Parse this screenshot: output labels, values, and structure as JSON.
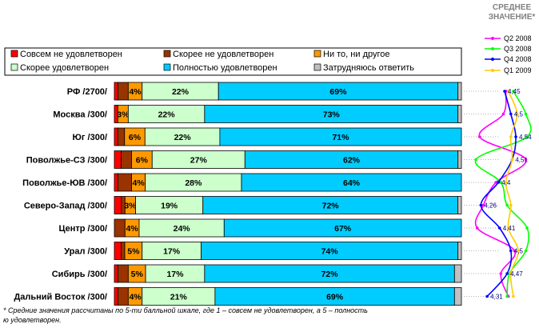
{
  "chart_data": [
    {
      "type": "bar",
      "orientation": "horizontal",
      "stacked": true,
      "normalized": true,
      "categories": [
        "РФ /2700/",
        "Москва /300/",
        "Юг /300/",
        "Поволжье-СЗ /300/",
        "Поволжье-ЮВ /300/",
        "Северо-Запад /300/",
        "Центр /300/",
        "Урал /300/",
        "Сибирь /300/",
        "Дальний Восток /300/"
      ],
      "series": [
        {
          "name": "Совсем не удовлетворен",
          "color": "#ff0000",
          "values": [
            1,
            1,
            1,
            2,
            1,
            2,
            0,
            2,
            1,
            1
          ]
        },
        {
          "name": "Скорее не удовлетворен",
          "color": "#993300",
          "values": [
            3,
            0,
            2,
            3,
            4,
            1,
            3,
            1,
            3,
            3
          ]
        },
        {
          "name": "Ни то, ни другое",
          "color": "#ff9900",
          "values": [
            4,
            3,
            6,
            6,
            4,
            3,
            4,
            5,
            5,
            4
          ]
        },
        {
          "name": "Скорее удовлетворен",
          "color": "#ccffcc",
          "values": [
            22,
            22,
            22,
            27,
            28,
            19,
            24,
            17,
            17,
            21
          ]
        },
        {
          "name": "Полностью удовлетворен",
          "color": "#00ccff",
          "values": [
            69,
            73,
            71,
            62,
            64,
            72,
            67,
            74,
            72,
            69
          ]
        },
        {
          "name": "Затрудняюсь ответить",
          "color": "#c0c0c0",
          "values": [
            1,
            1,
            0,
            1,
            0,
            1,
            0,
            1,
            2,
            2
          ]
        }
      ],
      "value_labels": [
        [
          "",
          "",
          "4%",
          "22%",
          "69%",
          ""
        ],
        [
          "",
          "",
          "3%",
          "22%",
          "73%",
          ""
        ],
        [
          "",
          "",
          "6%",
          "22%",
          "71%",
          ""
        ],
        [
          "",
          "",
          "6%",
          "27%",
          "62%",
          ""
        ],
        [
          "",
          "",
          "4%",
          "28%",
          "64%",
          ""
        ],
        [
          "",
          "",
          "3%",
          "19%",
          "72%",
          ""
        ],
        [
          "",
          "",
          "4%",
          "24%",
          "67%",
          ""
        ],
        [
          "",
          "",
          "5%",
          "17%",
          "74%",
          ""
        ],
        [
          "",
          "",
          "5%",
          "17%",
          "72%",
          ""
        ],
        [
          "",
          "",
          "4%",
          "21%",
          "69%",
          ""
        ]
      ],
      "legend": [
        "Совсем не удовлетворен",
        "Скорее не удовлетворен",
        "Ни то, ни другое",
        "Скорее удовлетворен",
        "Полностью удовлетворен",
        "Затрудняюсь ответить"
      ],
      "xlim": [
        0,
        100
      ],
      "footnote": "* Средние значения рассчитаны по 5-ти балльной шкале, где 1 – совсем не удовлетворен, а 5 – полностью удовлетворен."
    },
    {
      "type": "line",
      "orientation": "vertical",
      "title": "СРЕДНЕЕ ЗНАЧЕНИЕ*",
      "categories": [
        "РФ /2700/",
        "Москва /300/",
        "Юг /300/",
        "Поволжье-СЗ /300/",
        "Поволжье-ЮВ /300/",
        "Северо-Запад /300/",
        "Центр /300/",
        "Урал /300/",
        "Сибирь /300/",
        "Дальний Восток /300/"
      ],
      "xlim": [
        4.2,
        4.7
      ],
      "series": [
        {
          "name": "Q2 2008",
          "color": "#ff00ff",
          "values": [
            4.46,
            4.44,
            4.25,
            4.62,
            4.38,
            4.28,
            4.23,
            4.53,
            4.42,
            4.48
          ]
        },
        {
          "name": "Q3 2008",
          "color": "#00ff00",
          "values": [
            4.52,
            4.62,
            4.63,
            4.22,
            4.42,
            4.47,
            4.63,
            4.62,
            4.49,
            4.47
          ]
        },
        {
          "name": "Q4 2008",
          "color": "#0000ff",
          "values": [
            4.45,
            4.5,
            4.54,
            4.51,
            4.4,
            4.26,
            4.41,
            4.5,
            4.47,
            4.31
          ]
        },
        {
          "name": "Q1 2009",
          "color": "#ffcc00",
          "values": [
            4.48,
            4.55,
            4.5,
            4.51,
            4.46,
            4.5,
            4.48,
            4.56,
            4.5,
            4.52
          ]
        }
      ],
      "point_labels": [
        "4,45",
        "4,5",
        "4,54",
        "4,51",
        "4,4",
        "4,26",
        "4,41",
        "4,5",
        "4,47",
        "4,31"
      ],
      "legend": [
        "Q2 2008",
        "Q3 2008",
        "Q4 2008",
        "Q1 2009"
      ]
    }
  ]
}
